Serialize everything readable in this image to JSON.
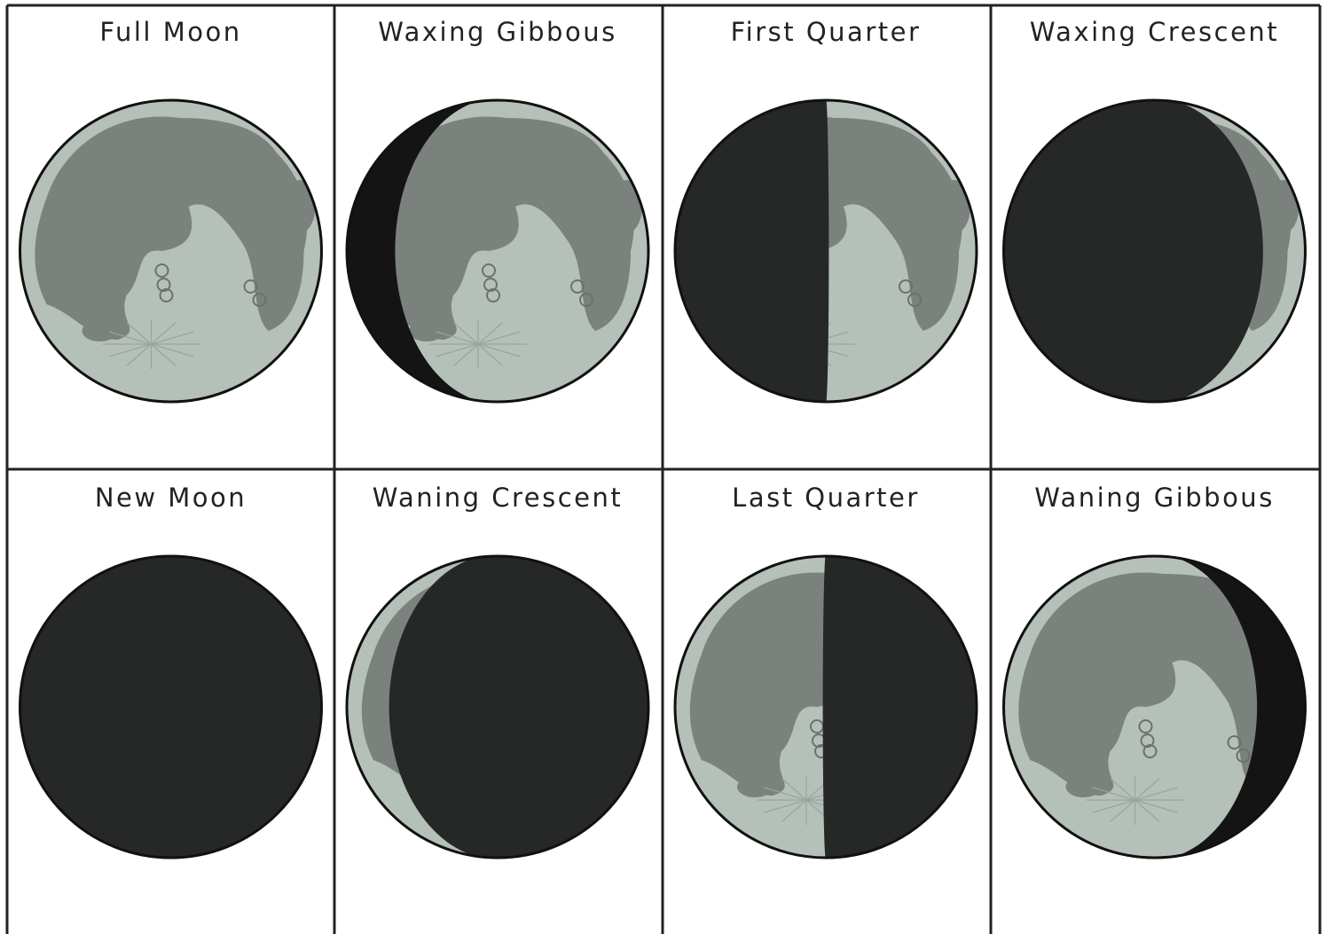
{
  "cells": [
    {
      "label": "Full Moon"
    },
    {
      "label": "Waxing Gibbous"
    },
    {
      "label": "First Quarter"
    },
    {
      "label": "Waxing Crescent"
    },
    {
      "label": "New Moon"
    },
    {
      "label": "Waning Crescent"
    },
    {
      "label": "Last Quarter"
    },
    {
      "label": "Waning Gibbous"
    }
  ]
}
